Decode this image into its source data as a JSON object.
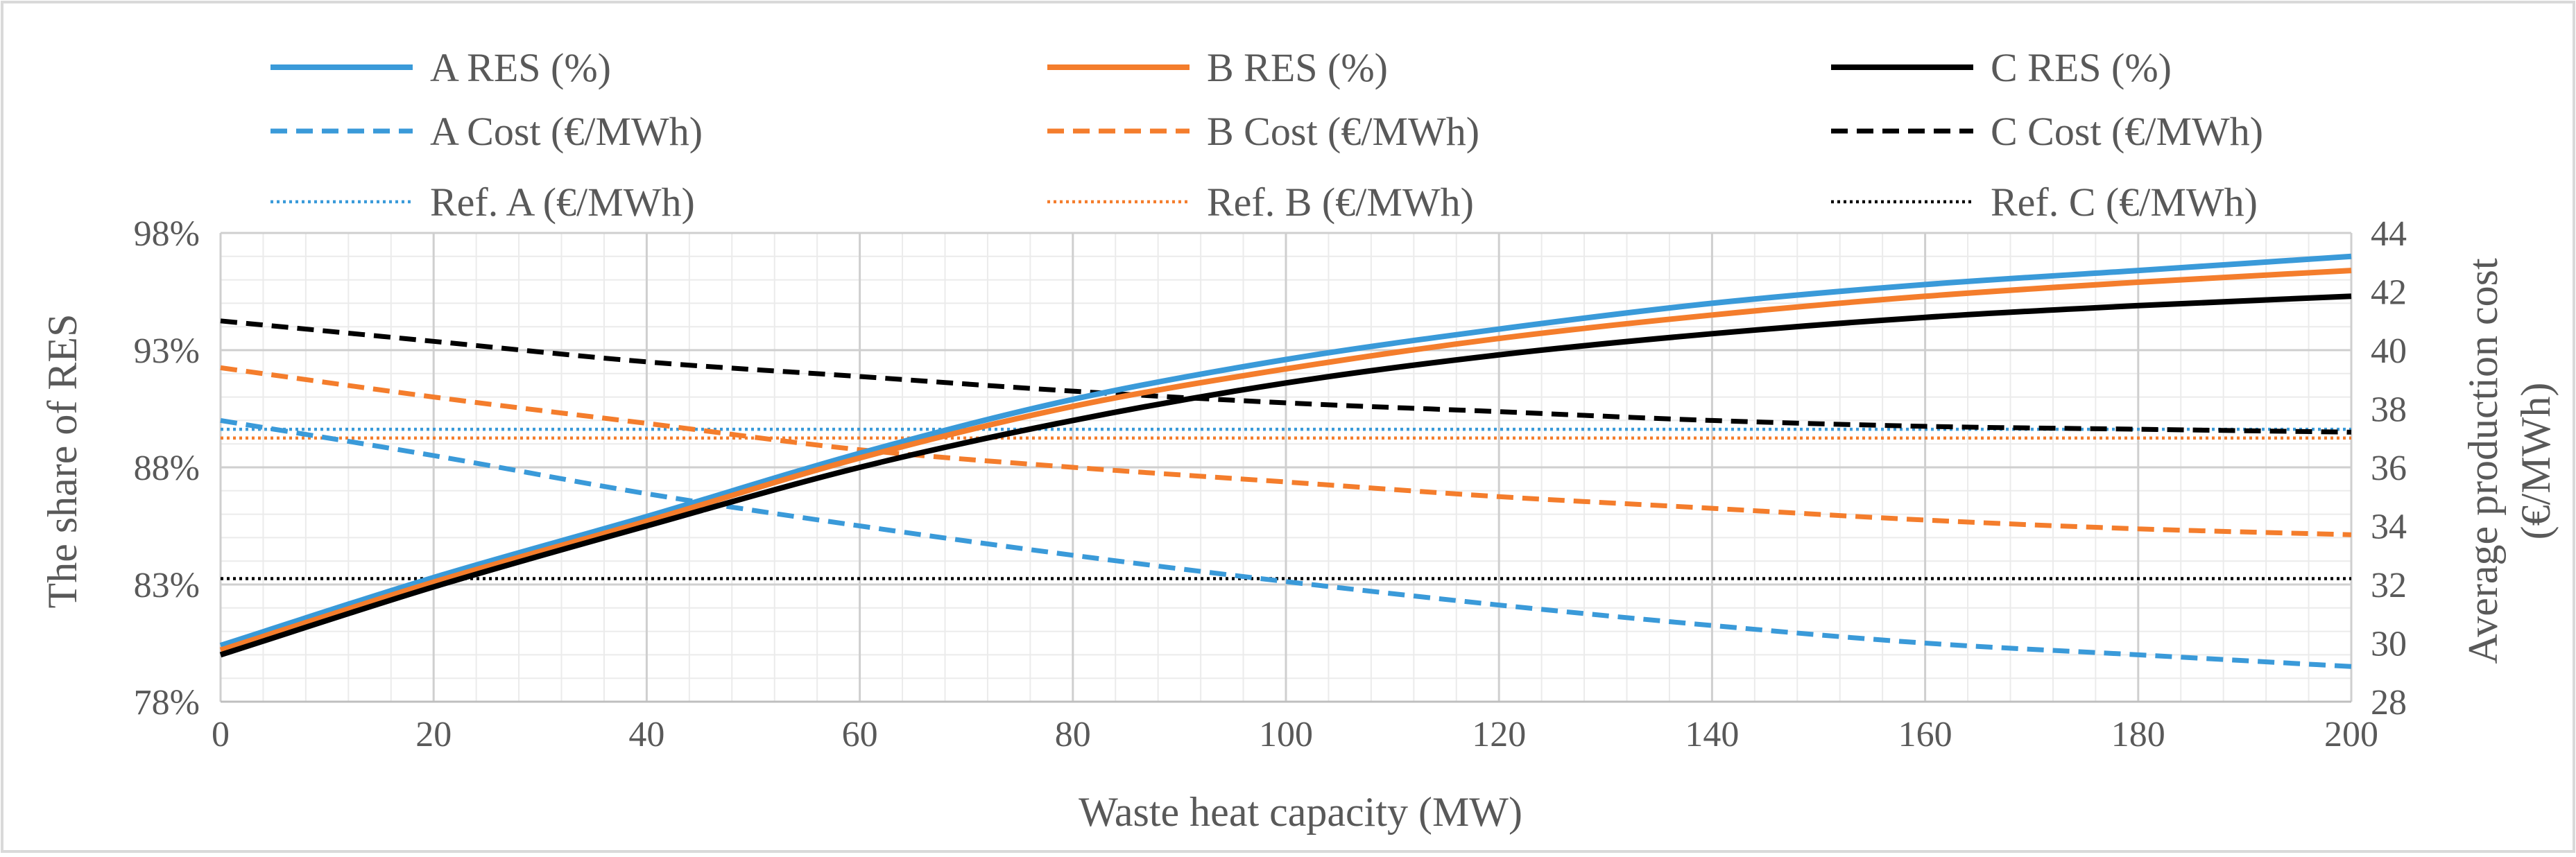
{
  "chart_data": {
    "type": "line",
    "title": "",
    "xlabel": "Waste heat capacity (MW)",
    "ylabel": "The share of RES",
    "y2label": [
      "Average production cost",
      "(€/MWh)"
    ],
    "xlim": [
      0,
      200
    ],
    "ylim": [
      78,
      98
    ],
    "y2lim": [
      28,
      44
    ],
    "x_ticks": [
      "0",
      "20",
      "40",
      "60",
      "80",
      "100",
      "120",
      "140",
      "160",
      "180",
      "200"
    ],
    "y_ticks": [
      "78%",
      "83%",
      "88%",
      "93%",
      "98%"
    ],
    "y2_ticks": [
      "28",
      "30",
      "32",
      "34",
      "36",
      "38",
      "40",
      "42",
      "44"
    ],
    "grid": true,
    "legend_position": "top",
    "x": [
      0,
      20,
      40,
      60,
      80,
      100,
      120,
      140,
      160,
      180,
      200
    ],
    "series": [
      {
        "name": "A RES (%)",
        "axis": "left",
        "style": "solid",
        "color": "#3a9ad9",
        "values": [
          80.4,
          83.3,
          85.9,
          88.6,
          90.9,
          92.6,
          93.9,
          95.0,
          95.8,
          96.4,
          97.0
        ]
      },
      {
        "name": "B RES (%)",
        "axis": "left",
        "style": "solid",
        "color": "#f47d2c",
        "values": [
          80.2,
          83.1,
          85.7,
          88.4,
          90.6,
          92.2,
          93.5,
          94.5,
          95.3,
          95.9,
          96.4
        ]
      },
      {
        "name": "C RES (%)",
        "axis": "left",
        "style": "solid",
        "color": "#000000",
        "values": [
          80.0,
          82.9,
          85.5,
          88.0,
          90.0,
          91.6,
          92.8,
          93.7,
          94.4,
          94.9,
          95.3
        ]
      },
      {
        "name": "A Cost (€/MWh)",
        "axis": "right",
        "style": "dashed",
        "color": "#3a9ad9",
        "values": [
          37.6,
          36.4,
          35.1,
          34.0,
          33.0,
          32.1,
          31.3,
          30.6,
          30.0,
          29.6,
          29.2
        ]
      },
      {
        "name": "B Cost (€/MWh)",
        "axis": "right",
        "style": "dashed",
        "color": "#f47d2c",
        "values": [
          39.4,
          38.4,
          37.5,
          36.6,
          36.0,
          35.5,
          35.0,
          34.6,
          34.2,
          33.9,
          33.7
        ]
      },
      {
        "name": "C Cost (€/MWh)",
        "axis": "right",
        "style": "dashed",
        "color": "#000000",
        "values": [
          41.0,
          40.3,
          39.6,
          39.1,
          38.6,
          38.2,
          37.9,
          37.6,
          37.4,
          37.3,
          37.2
        ]
      },
      {
        "name": "Ref. A (€/MWh)",
        "axis": "right",
        "style": "dotted",
        "color": "#3a9ad9",
        "values": [
          37.3,
          37.3,
          37.3,
          37.3,
          37.3,
          37.3,
          37.3,
          37.3,
          37.3,
          37.3,
          37.3
        ]
      },
      {
        "name": "Ref. B (€/MWh)",
        "axis": "right",
        "style": "dotted",
        "color": "#f47d2c",
        "values": [
          37.0,
          37.0,
          37.0,
          37.0,
          37.0,
          37.0,
          37.0,
          37.0,
          37.0,
          37.0,
          37.0
        ]
      },
      {
        "name": "Ref. C (€/MWh)",
        "axis": "right",
        "style": "dotted",
        "color": "#000000",
        "values": [
          32.2,
          32.2,
          32.2,
          32.2,
          32.2,
          32.2,
          32.2,
          32.2,
          32.2,
          32.2,
          32.2
        ]
      }
    ]
  }
}
